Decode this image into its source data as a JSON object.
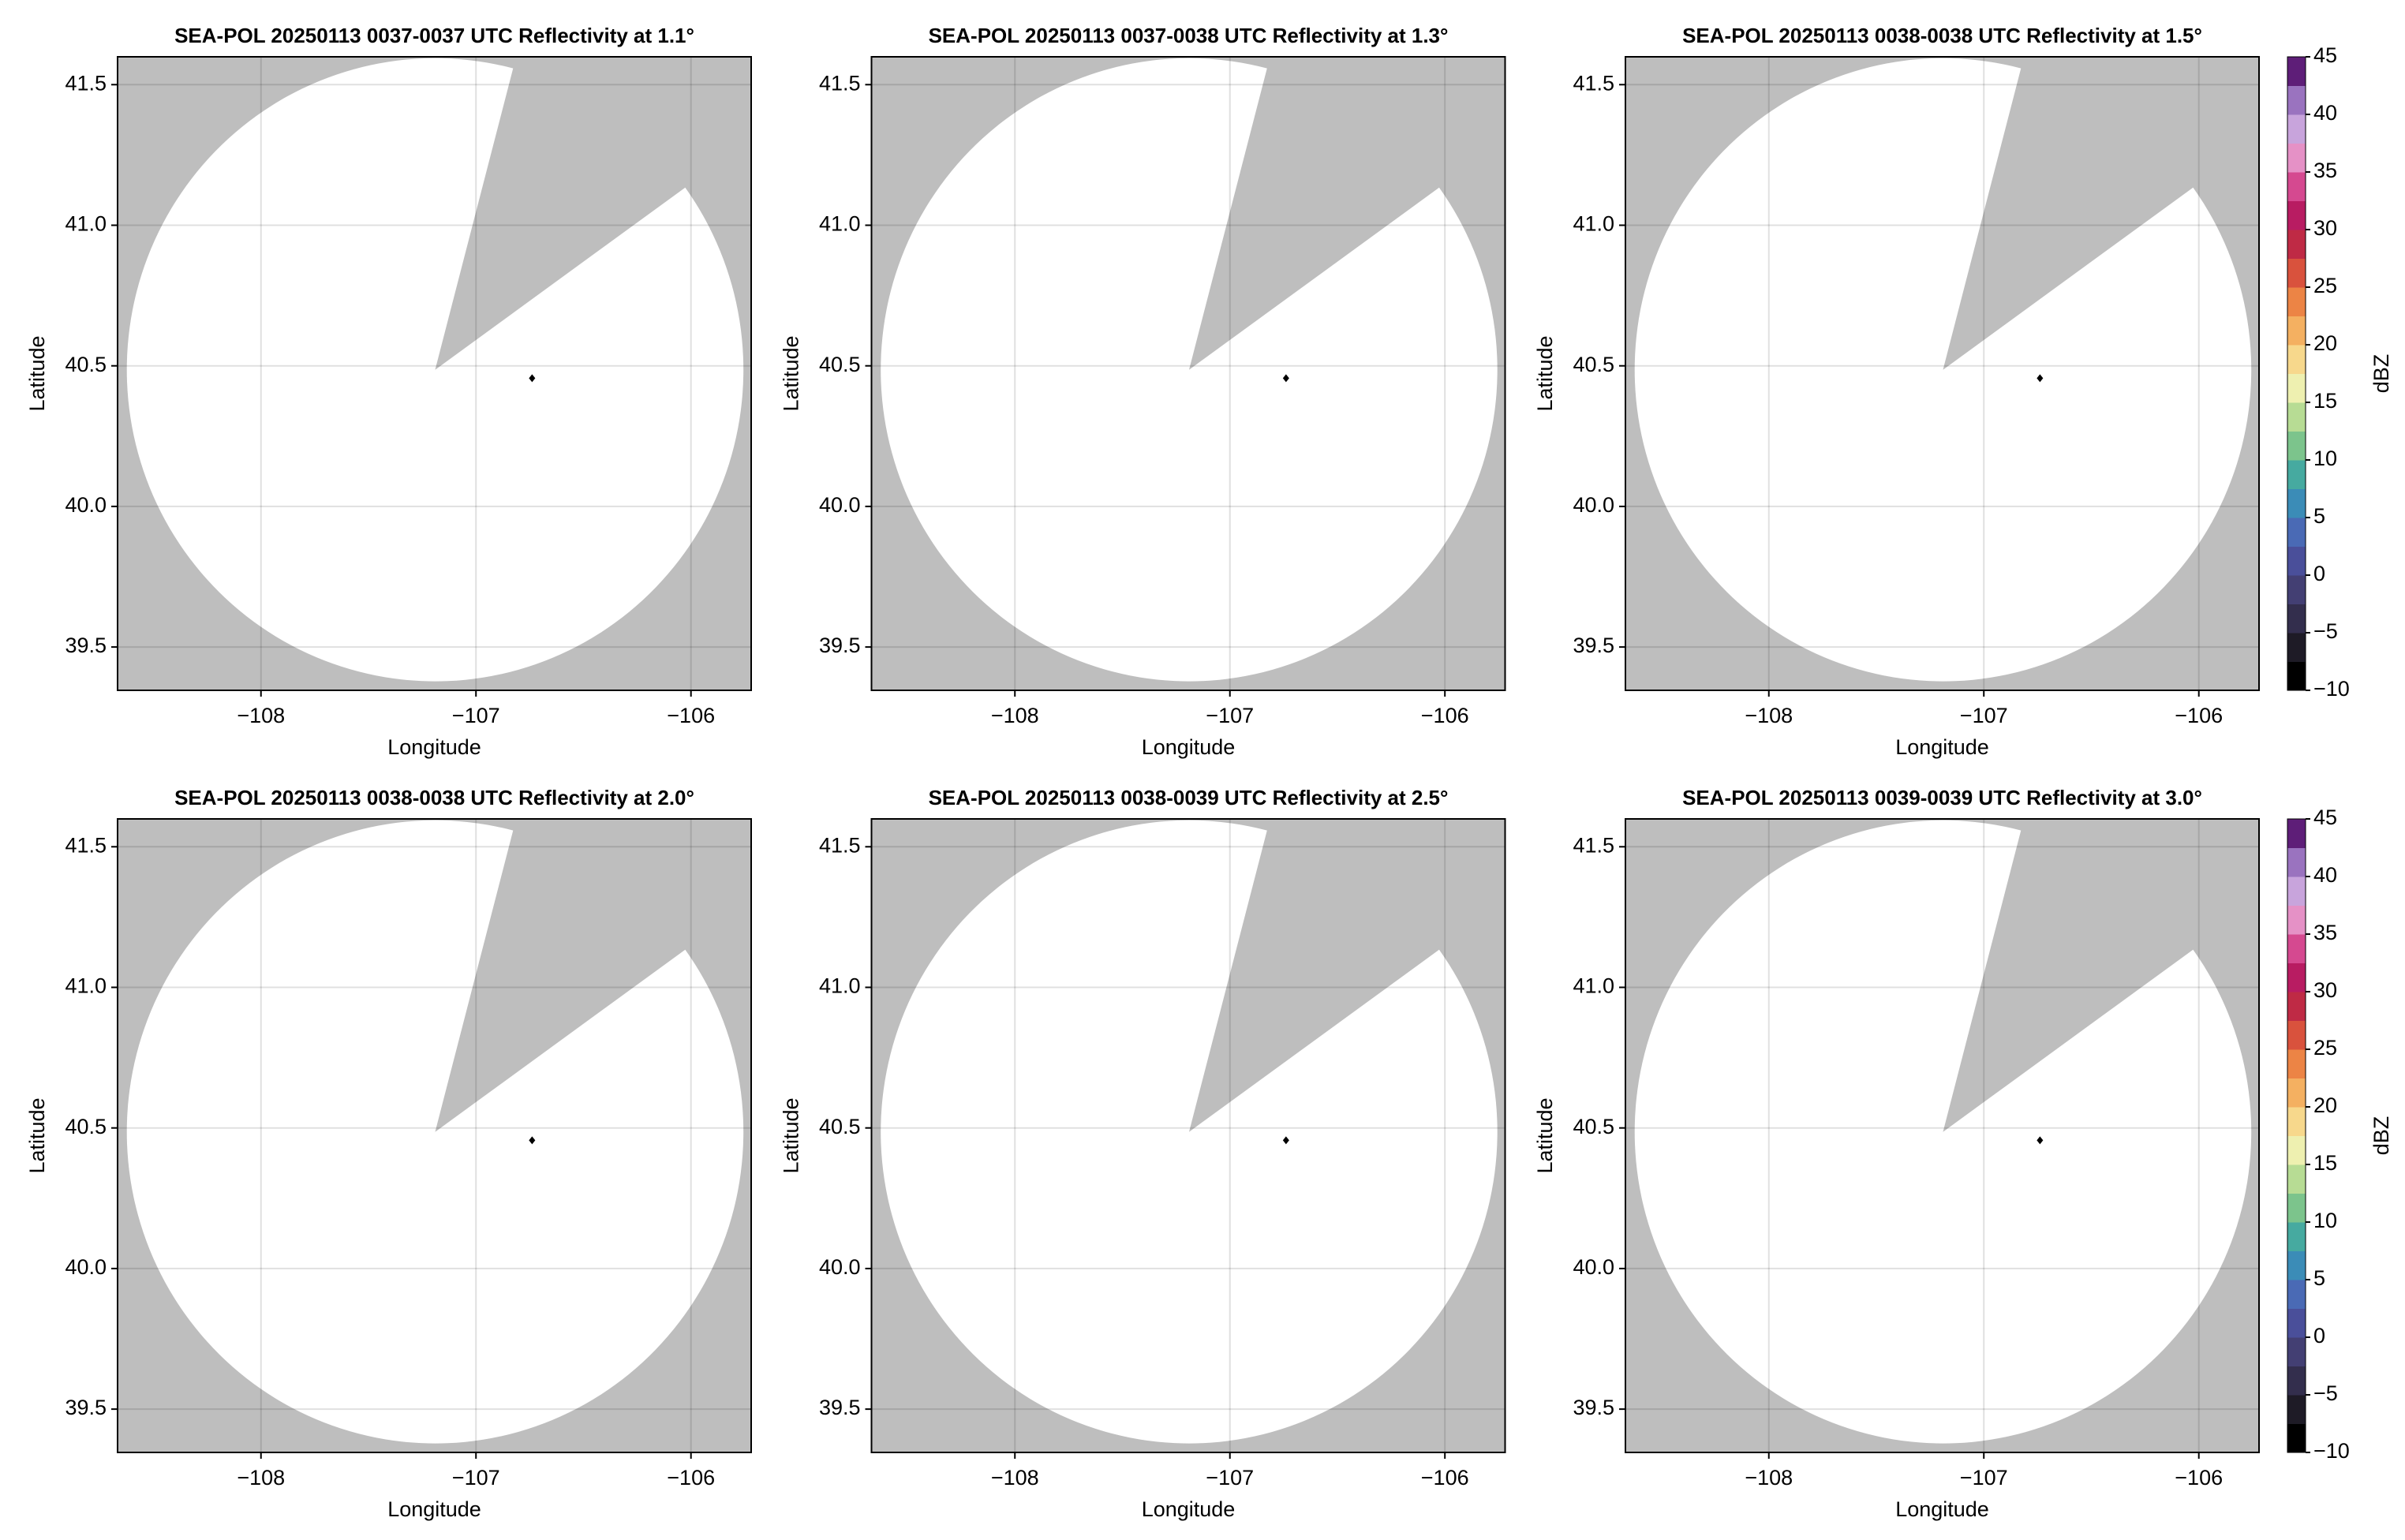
{
  "chart_data": [
    {
      "type": "map",
      "title": "SEA-POL 20250113 0037-0037 UTC Reflectivity at 1.1°",
      "xlabel": "Longitude",
      "ylabel": "Latitude",
      "xlim": [
        -108.667,
        -105.72
      ],
      "ylim": [
        39.346,
        41.599
      ],
      "xticks": [
        {
          "value": -108,
          "label": "−108"
        },
        {
          "value": -107,
          "label": "−107"
        },
        {
          "value": -106,
          "label": "−106"
        }
      ],
      "yticks": [
        39.5,
        {
          "value": 40.0,
          "label": "40.0"
        },
        40.5,
        {
          "value": 41.0,
          "label": "41.0"
        },
        41.5
      ],
      "grid": true,
      "background": "#bebebe",
      "coverage_color": "#ffffff",
      "coverage": {
        "center_lon": -107.19,
        "center_lat": 40.486,
        "range_lon": 1.434,
        "range_lat": 1.108,
        "gap_edges": [
          [
            -106.832,
            41.544
          ],
          [
            -106.05,
            41.121
          ]
        ]
      },
      "site": {
        "lon": -106.739,
        "lat": 40.456
      }
    },
    {
      "type": "map",
      "title": "SEA-POL 20250113 0037-0038 UTC Reflectivity at 1.3°",
      "xlabel": "Longitude",
      "ylabel": "Latitude",
      "xlim": [
        -108.667,
        -105.72
      ],
      "ylim": [
        39.346,
        41.599
      ],
      "xticks": [
        {
          "value": -108,
          "label": "−108"
        },
        {
          "value": -107,
          "label": "−107"
        },
        {
          "value": -106,
          "label": "−106"
        }
      ],
      "yticks": [
        39.5,
        {
          "value": 40.0,
          "label": "40.0"
        },
        40.5,
        {
          "value": 41.0,
          "label": "41.0"
        },
        41.5
      ],
      "grid": true,
      "background": "#bebebe",
      "coverage_color": "#ffffff",
      "coverage": {
        "center_lon": -107.19,
        "center_lat": 40.486,
        "range_lon": 1.434,
        "range_lat": 1.108,
        "gap_edges": [
          [
            -106.832,
            41.544
          ],
          [
            -106.05,
            41.121
          ]
        ]
      },
      "site": {
        "lon": -106.739,
        "lat": 40.456
      }
    },
    {
      "type": "map",
      "title": "SEA-POL 20250113 0038-0038 UTC Reflectivity at 1.5°",
      "xlabel": "Longitude",
      "ylabel": "Latitude",
      "xlim": [
        -108.667,
        -105.72
      ],
      "ylim": [
        39.346,
        41.599
      ],
      "xticks": [
        {
          "value": -108,
          "label": "−108"
        },
        {
          "value": -107,
          "label": "−107"
        },
        {
          "value": -106,
          "label": "−106"
        }
      ],
      "yticks": [
        39.5,
        {
          "value": 40.0,
          "label": "40.0"
        },
        40.5,
        {
          "value": 41.0,
          "label": "41.0"
        },
        41.5
      ],
      "grid": true,
      "background": "#bebebe",
      "coverage_color": "#ffffff",
      "coverage": {
        "center_lon": -107.19,
        "center_lat": 40.486,
        "range_lon": 1.434,
        "range_lat": 1.108,
        "gap_edges": [
          [
            -106.832,
            41.544
          ],
          [
            -106.05,
            41.121
          ]
        ]
      },
      "site": {
        "lon": -106.739,
        "lat": 40.456
      },
      "colorbar": {
        "label": "dBZ",
        "lim": [
          -10,
          45
        ],
        "ticks": [
          {
            "value": -10,
            "label": "−10"
          },
          {
            "value": -5,
            "label": "−5"
          },
          0,
          5,
          10,
          15,
          20,
          25,
          30,
          35,
          40,
          45
        ],
        "colors": [
          "#000000",
          "#1e1b26",
          "#332e4d",
          "#433f73",
          "#4a4f9a",
          "#4a6ab5",
          "#3b8cb7",
          "#46aaa0",
          "#7cc48c",
          "#b7dc94",
          "#eef0b0",
          "#f7d88c",
          "#f4b061",
          "#ec8445",
          "#d9523d",
          "#bf2a45",
          "#b81c62",
          "#d54990",
          "#e591c6",
          "#c8a4dc",
          "#9a73bf",
          "#5e1e78"
        ]
      }
    },
    {
      "type": "map",
      "title": "SEA-POL 20250113 0038-0038 UTC Reflectivity at 2.0°",
      "xlabel": "Longitude",
      "ylabel": "Latitude",
      "xlim": [
        -108.667,
        -105.72
      ],
      "ylim": [
        39.346,
        41.599
      ],
      "xticks": [
        {
          "value": -108,
          "label": "−108"
        },
        {
          "value": -107,
          "label": "−107"
        },
        {
          "value": -106,
          "label": "−106"
        }
      ],
      "yticks": [
        39.5,
        {
          "value": 40.0,
          "label": "40.0"
        },
        40.5,
        {
          "value": 41.0,
          "label": "41.0"
        },
        41.5
      ],
      "grid": true,
      "background": "#bebebe",
      "coverage_color": "#ffffff",
      "coverage": {
        "center_lon": -107.19,
        "center_lat": 40.486,
        "range_lon": 1.434,
        "range_lat": 1.108,
        "gap_edges": [
          [
            -106.832,
            41.544
          ],
          [
            -106.05,
            41.121
          ]
        ]
      },
      "site": {
        "lon": -106.739,
        "lat": 40.456
      }
    },
    {
      "type": "map",
      "title": "SEA-POL 20250113 0038-0039 UTC Reflectivity at 2.5°",
      "xlabel": "Longitude",
      "ylabel": "Latitude",
      "xlim": [
        -108.667,
        -105.72
      ],
      "ylim": [
        39.346,
        41.599
      ],
      "xticks": [
        {
          "value": -108,
          "label": "−108"
        },
        {
          "value": -107,
          "label": "−107"
        },
        {
          "value": -106,
          "label": "−106"
        }
      ],
      "yticks": [
        39.5,
        {
          "value": 40.0,
          "label": "40.0"
        },
        40.5,
        {
          "value": 41.0,
          "label": "41.0"
        },
        41.5
      ],
      "grid": true,
      "background": "#bebebe",
      "coverage_color": "#ffffff",
      "coverage": {
        "center_lon": -107.19,
        "center_lat": 40.486,
        "range_lon": 1.434,
        "range_lat": 1.108,
        "gap_edges": [
          [
            -106.832,
            41.544
          ],
          [
            -106.05,
            41.121
          ]
        ]
      },
      "site": {
        "lon": -106.739,
        "lat": 40.456
      }
    },
    {
      "type": "map",
      "title": "SEA-POL 20250113 0039-0039 UTC Reflectivity at 3.0°",
      "xlabel": "Longitude",
      "ylabel": "Latitude",
      "xlim": [
        -108.667,
        -105.72
      ],
      "ylim": [
        39.346,
        41.599
      ],
      "xticks": [
        {
          "value": -108,
          "label": "−108"
        },
        {
          "value": -107,
          "label": "−107"
        },
        {
          "value": -106,
          "label": "−106"
        }
      ],
      "yticks": [
        39.5,
        {
          "value": 40.0,
          "label": "40.0"
        },
        40.5,
        {
          "value": 41.0,
          "label": "41.0"
        },
        41.5
      ],
      "grid": true,
      "background": "#bebebe",
      "coverage_color": "#ffffff",
      "coverage": {
        "center_lon": -107.19,
        "center_lat": 40.486,
        "range_lon": 1.434,
        "range_lat": 1.108,
        "gap_edges": [
          [
            -106.832,
            41.544
          ],
          [
            -106.05,
            41.121
          ]
        ]
      },
      "site": {
        "lon": -106.739,
        "lat": 40.456
      },
      "colorbar": {
        "label": "dBZ",
        "lim": [
          -10,
          45
        ],
        "ticks": [
          {
            "value": -10,
            "label": "−10"
          },
          {
            "value": -5,
            "label": "−5"
          },
          0,
          5,
          10,
          15,
          20,
          25,
          30,
          35,
          40,
          45
        ],
        "colors": [
          "#000000",
          "#1e1b26",
          "#332e4d",
          "#433f73",
          "#4a4f9a",
          "#4a6ab5",
          "#3b8cb7",
          "#46aaa0",
          "#7cc48c",
          "#b7dc94",
          "#eef0b0",
          "#f7d88c",
          "#f4b061",
          "#ec8445",
          "#d9523d",
          "#bf2a45",
          "#b81c62",
          "#d54990",
          "#e591c6",
          "#c8a4dc",
          "#9a73bf",
          "#5e1e78"
        ]
      }
    }
  ]
}
